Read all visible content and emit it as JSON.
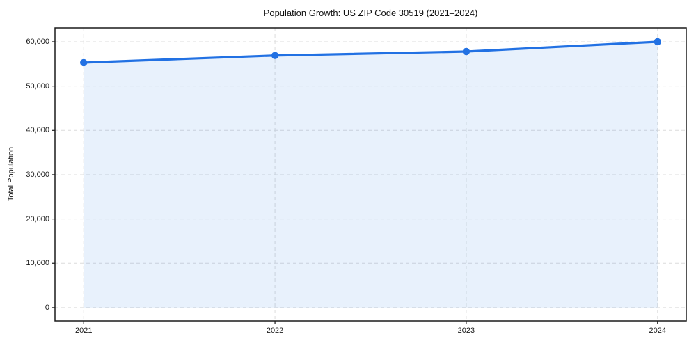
{
  "chart_data": {
    "type": "area",
    "title": "Population Growth: US ZIP Code 30519 (2021–2024)",
    "xlabel": "",
    "ylabel": "Total Population",
    "x": [
      2021,
      2022,
      2023,
      2024
    ],
    "xtick_labels": [
      "2021",
      "2022",
      "2023",
      "2024"
    ],
    "series": [
      {
        "name": "Total Population",
        "values": [
          55300,
          56900,
          57800,
          60000
        ]
      }
    ],
    "yticks": [
      0,
      10000,
      20000,
      30000,
      40000,
      50000,
      60000
    ],
    "ytick_labels": [
      "0",
      "10,000",
      "20,000",
      "30,000",
      "40,000",
      "50,000",
      "60,000"
    ],
    "xlim": [
      2020.85,
      2024.15
    ],
    "ylim": [
      -3000,
      63140
    ],
    "grid": true,
    "legend": false,
    "marker": "circle",
    "colors": {
      "line": "#2271e3",
      "fill": "rgba(34, 113, 227, 0.10)",
      "grid": "#dcdcdc",
      "spine": "#1a1a1a",
      "text": "#1a1a1a",
      "background": "#ffffff"
    }
  }
}
